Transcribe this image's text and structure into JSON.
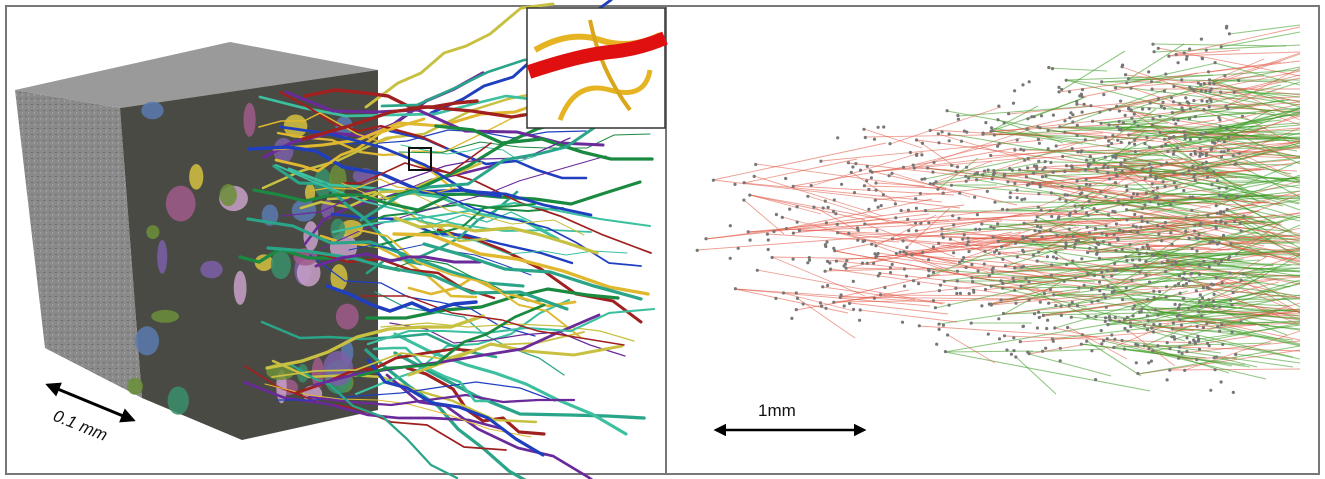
{
  "panels": [
    {
      "scale_bar": "0.1 mm"
    },
    {
      "scale_bar": "1mm"
    }
  ]
}
